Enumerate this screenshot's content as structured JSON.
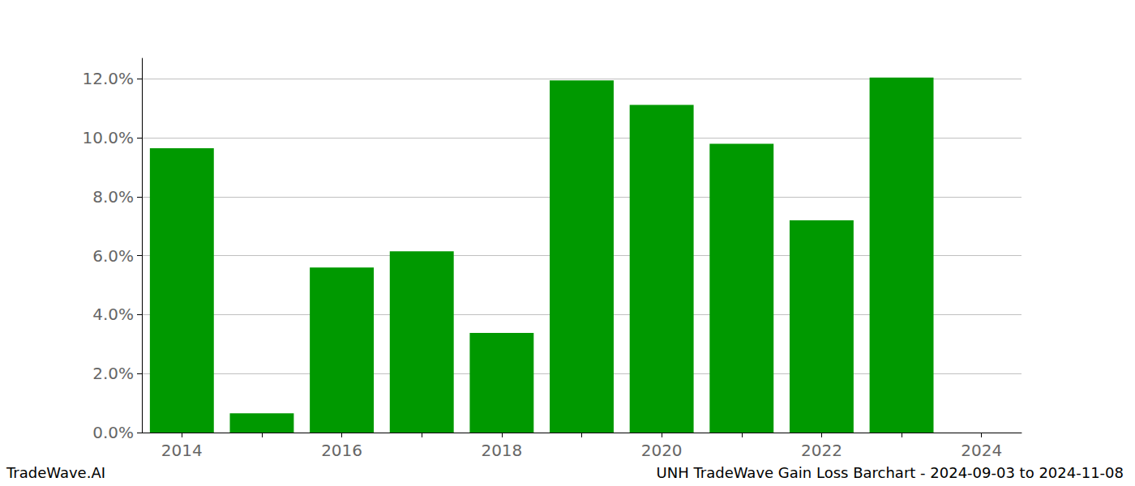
{
  "chart_data": {
    "type": "bar",
    "title": "UNH TradeWave Gain Loss Barchart - 2024-09-03 to 2024-11-08",
    "annotations": [
      "TradeWave.AI"
    ],
    "categories": [
      "2014",
      null,
      "2016",
      null,
      "2018",
      null,
      "2020",
      null,
      "2022",
      null,
      "2024"
    ],
    "values": [
      9.65,
      0.65,
      5.6,
      6.15,
      3.38,
      11.95,
      11.12,
      9.8,
      7.2,
      12.05,
      null
    ],
    "color": "#009900",
    "ylim": [
      0,
      12.7
    ],
    "yticks": [
      {
        "value": 0,
        "label": "0.0%"
      },
      {
        "value": 2,
        "label": "2.0%"
      },
      {
        "value": 4,
        "label": "4.0%"
      },
      {
        "value": 6,
        "label": "6.0%"
      },
      {
        "value": 8,
        "label": "8.0%"
      },
      {
        "value": 10,
        "label": "10.0%"
      },
      {
        "value": 12,
        "label": "12.0%"
      }
    ],
    "grid": true
  }
}
